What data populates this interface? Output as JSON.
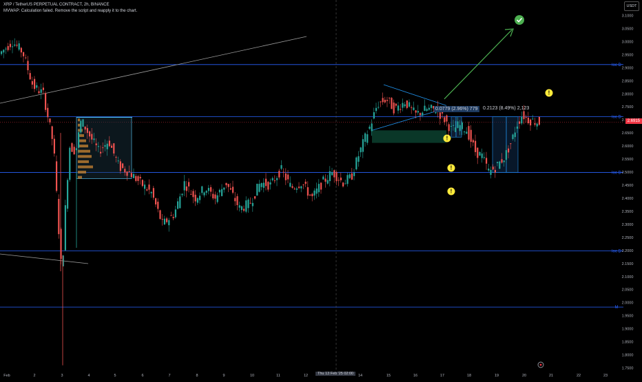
{
  "header": {
    "symbol_line": "XRP / TetherUS PERPETUAL CONTRACT, 2h, BINANCE",
    "script_error": "MVWAP: Calculation failed. Remove the script and reapply it to the chart."
  },
  "currency": "USDT",
  "last_price": "2.6915",
  "colors": {
    "up": "#26a69a",
    "down": "#ef5350",
    "level": "#2962ff",
    "measure": "#2196f3",
    "arrow": "#4caf50",
    "warning": "#ffeb3b",
    "trend": "#9e9e9e"
  },
  "y_axis": {
    "ticks": [
      "3.1000",
      "3.0500",
      "3.0000",
      "2.9500",
      "2.9000",
      "2.8500",
      "2.8000",
      "2.7500",
      "2.7000",
      "2.6500",
      "2.6000",
      "2.5500",
      "2.5000",
      "2.4500",
      "2.4000",
      "2.3500",
      "2.3000",
      "2.2500",
      "2.2000",
      "2.1500",
      "2.1000",
      "2.0500",
      "2.0000",
      "1.9500",
      "1.9000",
      "1.8500",
      "1.8000",
      "1.7500"
    ],
    "min": 1.725,
    "max": 3.125
  },
  "x_axis": {
    "labels": [
      "Feb",
      "2",
      "3",
      "4",
      "5",
      "6",
      "7",
      "8",
      "9",
      "10",
      "11",
      "12",
      "14",
      "15",
      "16",
      "17",
      "18",
      "19",
      "20",
      "21",
      "22",
      "23"
    ],
    "highlighted": "Thu 13 Feb '25   02:00"
  },
  "levels": [
    {
      "label": "loc D",
      "price": 2.912
    },
    {
      "label": "loc D",
      "price": 2.712
    },
    {
      "label": "loc D",
      "price": 2.499
    },
    {
      "label": "loc D",
      "price": 2.198
    },
    {
      "label": "M",
      "price": 1.983
    }
  ],
  "measure_labels": [
    {
      "text": "0.0779 (2.96%) 779"
    },
    {
      "text": "0.2123 (8.49%) 2,123"
    }
  ],
  "icons": [
    "check-icon",
    "warning-icon",
    "settings-icon"
  ]
}
